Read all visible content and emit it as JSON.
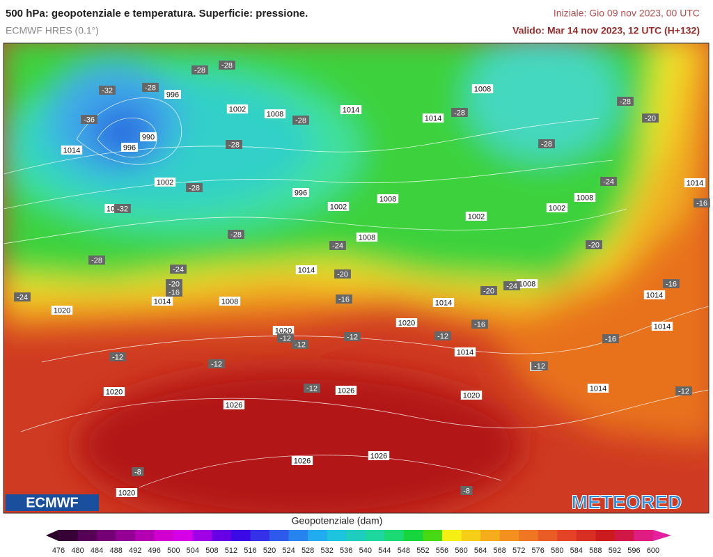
{
  "header": {
    "title": "500 hPa: geopotenziale e temperatura. Superficie: pressione.",
    "model": "ECMWF HRES (0.1°)",
    "init": "Iniziale: Gio 09 nov 2023, 00 UTC",
    "valid": "Valido: Mar 14 nov 2023, 12 UTC (H+132)"
  },
  "map": {
    "pressure_labels": [
      "996",
      "1002",
      "1008",
      "1014",
      "1008",
      "1014",
      "990",
      "996",
      "1014",
      "1002",
      "996",
      "1002",
      "1008",
      "1002",
      "1002",
      "1008",
      "1014",
      "10",
      "1008",
      "1014",
      "1014",
      "1008",
      "1020",
      "1014",
      "1008",
      "1014",
      "1014",
      "1020",
      "1020",
      "1014",
      "14",
      "1020",
      "1026",
      "1026",
      "1020",
      "1014",
      "1026",
      "1026",
      "1020"
    ],
    "temperature_labels": [
      "-28",
      "-28",
      "-28",
      "-32",
      "-36",
      "-28",
      "-28",
      "-28",
      "-28",
      "-28",
      "-20",
      "-28",
      "-32",
      "-28",
      "-24",
      "-24",
      "-20",
      "-16",
      "-28",
      "-24",
      "-20",
      "-16",
      "-20",
      "-24",
      "-16",
      "-20",
      "-24",
      "-16",
      "-16",
      "-12",
      "-12",
      "-12",
      "-12",
      "-16",
      "-12",
      "-12",
      "-12",
      "-12",
      "-12",
      "-8",
      "-8"
    ]
  },
  "colorbar": {
    "title": "Geopotenziale (dam)",
    "ticks": [
      476,
      480,
      484,
      488,
      492,
      496,
      500,
      504,
      508,
      512,
      516,
      520,
      524,
      528,
      532,
      536,
      540,
      544,
      548,
      552,
      556,
      560,
      564,
      568,
      572,
      576,
      580,
      584,
      588,
      592,
      596,
      600
    ]
  },
  "logos": {
    "left": "ECMWF",
    "right": "METEORED"
  }
}
